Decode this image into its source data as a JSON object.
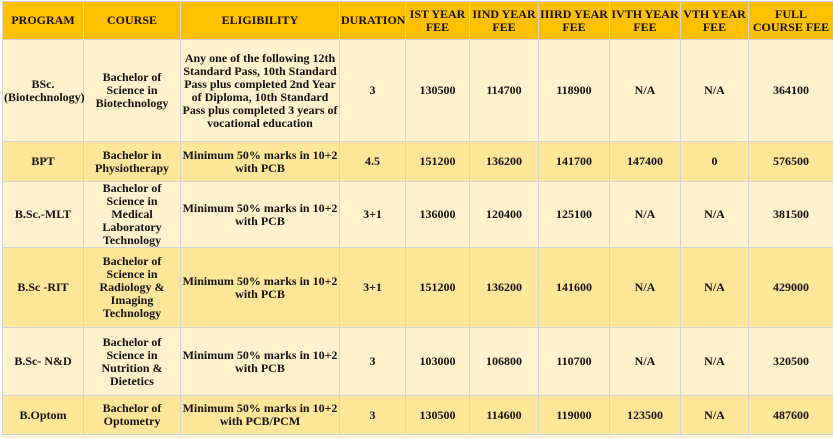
{
  "colors": {
    "header": "#ffc000",
    "row_light": "#fff2cc",
    "row_dark": "#ffe699"
  },
  "headers": [
    "PROGRAM",
    "COURSE",
    "ELIGIBILITY",
    "DURATION",
    "IST YEAR FEE",
    "IIND YEAR FEE",
    "IIIRD YEAR FEE",
    "IVTH YEAR FEE",
    "VTH YEAR FEE",
    "FULL COURSE FEE"
  ],
  "rows": [
    [
      "BSc. (Biotechnology)",
      "Bachelor of Science in Biotechnology",
      "Any one of the following 12th Standard Pass, 10th Standard Pass plus completed 2nd Year of Diploma, 10th Standard Pass plus completed 3 years of vocational education",
      "3",
      "130500",
      "114700",
      "118900",
      "N/A",
      "N/A",
      "364100"
    ],
    [
      "BPT",
      "Bachelor in Physiotherapy",
      "Minimum 50% marks in 10+2 with PCB",
      "4.5",
      "151200",
      "136200",
      "141700",
      "147400",
      "0",
      "576500"
    ],
    [
      "B.Sc.-MLT",
      "Bachelor of Science in Medical Laboratory Technology",
      "Minimum 50% marks in 10+2 with PCB",
      "3+1",
      "136000",
      "120400",
      "125100",
      "N/A",
      "N/A",
      "381500"
    ],
    [
      "B.Sc -RIT",
      "Bachelor of Science in Radiology & Imaging Technology",
      "Minimum 50% marks in 10+2 with PCB",
      "3+1",
      "151200",
      "136200",
      "141600",
      "N/A",
      "N/A",
      "429000"
    ],
    [
      "B.Sc- N&D",
      "Bachelor of Science in Nutrition & Dietetics",
      "Minimum 50% marks in 10+2 with PCB",
      "3",
      "103000",
      "106800",
      "110700",
      "N/A",
      "N/A",
      "320500"
    ],
    [
      "B.Optom",
      "Bachelor of Optometry",
      "Minimum 50% marks in 10+2 with PCB/PCM",
      "3",
      "130500",
      "114600",
      "119000",
      "123500",
      "N/A",
      "487600"
    ]
  ]
}
